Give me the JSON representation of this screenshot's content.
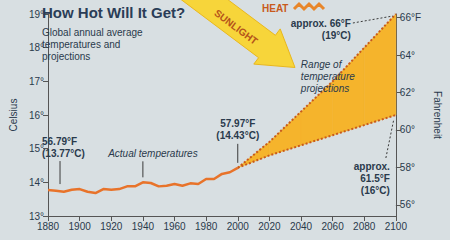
{
  "chart_data": {
    "type": "line",
    "title": "How Hot Will It Get?",
    "subtitle": "Global annual average temperatures and projections",
    "y_label": "Celsius",
    "y2_label": "Fahrenheit",
    "xlim": [
      1880,
      2100
    ],
    "xticks": [
      1880,
      1900,
      1920,
      1940,
      1960,
      1980,
      2000,
      2020,
      2040,
      2060,
      2080,
      2100
    ],
    "ylim": [
      13,
      19
    ],
    "yticks": [
      {
        "value": 13,
        "label": "13°"
      },
      {
        "value": 14,
        "label": "14°"
      },
      {
        "value": 15,
        "label": "15°"
      },
      {
        "value": 16,
        "label": "16°"
      },
      {
        "value": 17,
        "label": "17°"
      },
      {
        "value": 18,
        "label": "18°"
      },
      {
        "value": 19,
        "label": "19°"
      }
    ],
    "y2lim": [
      55.4,
      66.2
    ],
    "y2ticks": [
      {
        "value": 56,
        "label": "56°"
      },
      {
        "value": 58,
        "label": "58°"
      },
      {
        "value": 60,
        "label": "60°"
      },
      {
        "value": 62,
        "label": "62°"
      },
      {
        "value": 64,
        "label": "64°"
      },
      {
        "value": 66,
        "label": "66°F"
      }
    ],
    "grid": false,
    "series": [
      {
        "name": "Actual temperatures",
        "type": "line",
        "color": "#e8732a",
        "x": [
          1880,
          1885,
          1890,
          1895,
          1900,
          1905,
          1910,
          1915,
          1920,
          1925,
          1930,
          1935,
          1940,
          1945,
          1950,
          1955,
          1960,
          1965,
          1970,
          1975,
          1980,
          1985,
          1990,
          1995,
          2000
        ],
        "values": [
          13.77,
          13.75,
          13.72,
          13.78,
          13.8,
          13.72,
          13.68,
          13.8,
          13.78,
          13.8,
          13.88,
          13.88,
          14.0,
          13.98,
          13.88,
          13.9,
          13.95,
          13.9,
          13.97,
          13.95,
          14.1,
          14.1,
          14.25,
          14.3,
          14.43
        ]
      },
      {
        "name": "Range of temperature projections",
        "type": "band",
        "color": "#f5b42c",
        "line_style": "dotted",
        "x": [
          2000,
          2020,
          2040,
          2060,
          2080,
          2100
        ],
        "lower": [
          14.43,
          14.8,
          15.1,
          15.4,
          15.7,
          16.0
        ],
        "upper": [
          14.43,
          15.2,
          16.1,
          17.0,
          18.0,
          19.0
        ]
      }
    ],
    "annotations": [
      {
        "lines": [
          "56.79°F",
          "(13.77°C)"
        ]
      },
      {
        "lines": [
          "57.97°F",
          "(14.43°C)"
        ]
      },
      {
        "lines": [
          "approx. 66°F",
          "(19°C)"
        ]
      },
      {
        "lines": [
          "approx.",
          "61.5°F",
          "(16°C)"
        ]
      },
      {
        "lines": [
          "SUNLIGHT"
        ]
      },
      {
        "lines": [
          "HEAT"
        ]
      }
    ]
  }
}
